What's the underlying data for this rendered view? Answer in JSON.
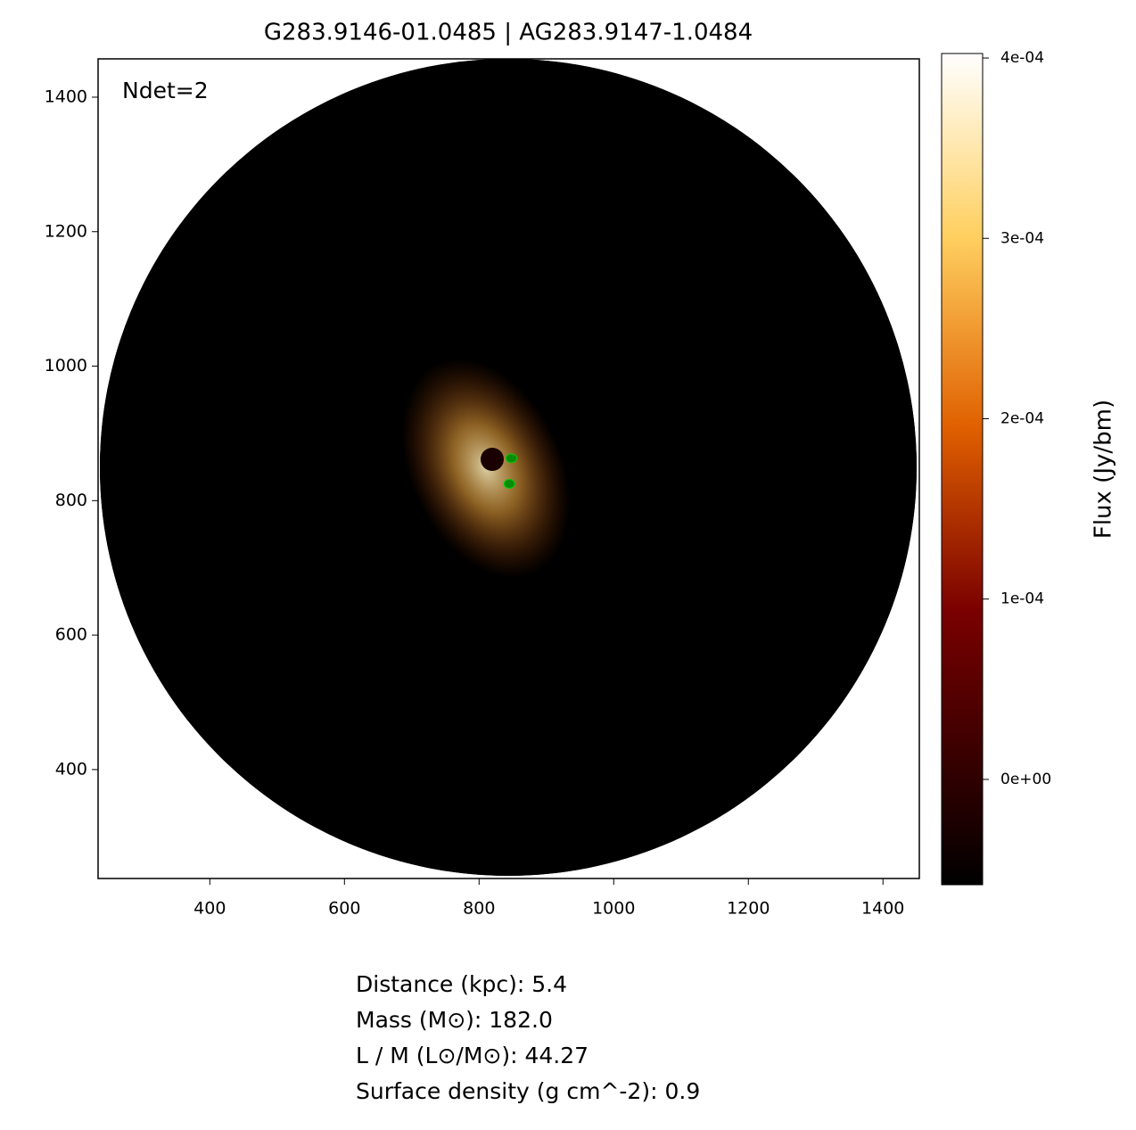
{
  "chart_data": {
    "type": "scatter",
    "title": "G283.9146-01.0485 | AG283.9147-1.0484",
    "annotation": "Ndet=2",
    "x": [
      848,
      845
    ],
    "y": [
      863,
      825
    ],
    "color": "#0a8a0a",
    "xlim": [
      234,
      1454
    ],
    "ylim": [
      238,
      1457
    ],
    "xticks": [
      400,
      600,
      800,
      1000,
      1200,
      1400
    ],
    "yticks": [
      400,
      600,
      800,
      1000,
      1200,
      1400
    ],
    "colorbar": {
      "label": "Flux (Jy/bm)",
      "lim": [
        -5.84e-05,
        0.0004025
      ],
      "ticks": [
        {
          "value": 0,
          "label": "0e+00"
        },
        {
          "value": 0.0001,
          "label": "1e-04"
        },
        {
          "value": 0.0002,
          "label": "2e-04"
        },
        {
          "value": 0.0003,
          "label": "3e-04"
        },
        {
          "value": 0.0004,
          "label": "4e-04"
        }
      ]
    },
    "notes": [
      "Distance (kpc): 5.4",
      "Mass (M⊙): 182.0",
      "L / M (L⊙/M⊙): 44.27",
      "Surface density (g cm^-2): 0.9"
    ]
  }
}
